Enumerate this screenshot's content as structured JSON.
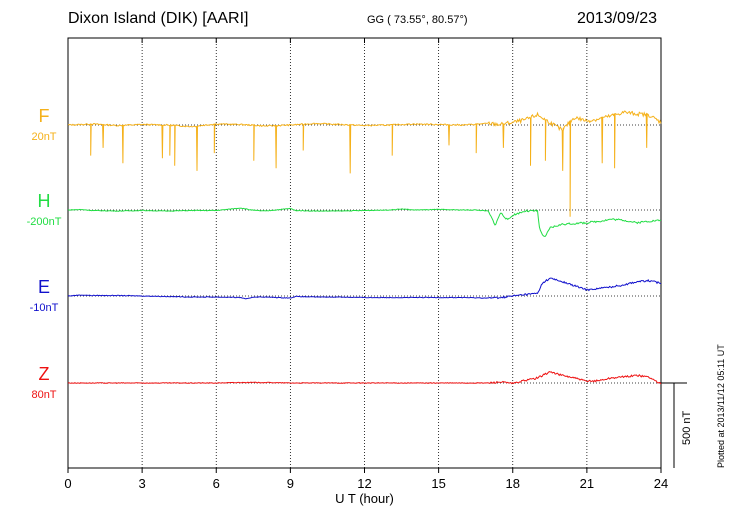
{
  "header": {
    "station": "Dixon Island (DIK)  [AARI]",
    "coords": "GG ( 73.55°,  80.57°)",
    "date": "2013/09/23"
  },
  "footer_note": "Plotted at 2013/11/12 05:11 UT",
  "chart_data": {
    "type": "line",
    "title": "Dixon Island (DIK)  [AARI]",
    "xlabel": "U T (hour)",
    "ylabel": "",
    "xlim": [
      0,
      24
    ],
    "xticks": [
      "0",
      "3",
      "6",
      "9",
      "12",
      "15",
      "18",
      "21",
      "24"
    ],
    "grid": true,
    "scale_bar_label": "500 nT",
    "series": [
      {
        "name": "F",
        "scale_label": "20nT",
        "color": "#f5b11a",
        "baseline_offset_nT": 0,
        "x": [
          0,
          1,
          2,
          3,
          4,
          5,
          6,
          7,
          8,
          9,
          10,
          11,
          12,
          13,
          14,
          15,
          16,
          17,
          17.5,
          18,
          18.5,
          19,
          19.5,
          20,
          20.5,
          21,
          21.5,
          22,
          22.5,
          23,
          23.5,
          24
        ],
        "values": [
          0,
          2,
          -1,
          1,
          0,
          -3,
          2,
          1,
          -2,
          0,
          3,
          1,
          -1,
          0,
          2,
          1,
          0,
          3,
          1,
          5,
          10,
          20,
          5,
          -10,
          15,
          8,
          12,
          18,
          25,
          22,
          20,
          5
        ],
        "dips": [
          [
            0.9,
            -60
          ],
          [
            1.4,
            -45
          ],
          [
            2.2,
            -75
          ],
          [
            3.8,
            -65
          ],
          [
            4.1,
            -60
          ],
          [
            4.3,
            -80
          ],
          [
            5.2,
            -90
          ],
          [
            5.9,
            -55
          ],
          [
            7.5,
            -70
          ],
          [
            8.4,
            -85
          ],
          [
            9.5,
            -50
          ],
          [
            11.4,
            -95
          ],
          [
            13.1,
            -60
          ],
          [
            15.4,
            -40
          ],
          [
            16.5,
            -55
          ],
          [
            17.6,
            -45
          ],
          [
            18.7,
            -80
          ],
          [
            19.3,
            -70
          ],
          [
            20.0,
            -90
          ],
          [
            20.3,
            -180
          ],
          [
            21.6,
            -75
          ],
          [
            22.1,
            -85
          ],
          [
            23.4,
            -45
          ]
        ]
      },
      {
        "name": "H",
        "scale_label": "-200nT",
        "color": "#22dd44",
        "x": [
          0,
          0.5,
          1,
          2,
          3,
          4,
          5,
          6,
          7,
          7.3,
          7.6,
          8,
          9,
          9.2,
          10,
          11,
          12,
          13,
          13.5,
          14,
          15,
          16,
          16.5,
          17,
          17.3,
          17.5,
          17.8,
          18,
          18.5,
          19,
          19.1,
          19.3,
          19.5,
          20,
          21,
          21.5,
          22,
          22.5,
          23,
          23.5,
          24
        ],
        "values": [
          0,
          1,
          -1,
          -2,
          -1,
          -2,
          -1,
          -1,
          4,
          1,
          -1,
          -2,
          3,
          -1,
          -2,
          -2,
          -1,
          0,
          2,
          0,
          1,
          0,
          0,
          -2,
          -30,
          -5,
          -20,
          -10,
          -2,
          -2,
          -40,
          -55,
          -35,
          -28,
          -25,
          -22,
          -18,
          -20,
          -25,
          -22,
          -20
        ]
      },
      {
        "name": "E",
        "scale_label": "-10nT",
        "color": "#1010cc",
        "x": [
          0,
          0.5,
          1,
          2,
          3,
          4,
          5,
          6,
          7,
          7.2,
          7.5,
          8,
          9,
          9.2,
          10,
          11,
          12,
          13,
          14,
          15,
          16,
          17,
          17.5,
          18,
          18.5,
          19,
          19.2,
          19.5,
          20,
          20.5,
          21,
          21.5,
          22,
          22.5,
          23,
          23.5,
          24
        ],
        "values": [
          0,
          2,
          1,
          1,
          0,
          -1,
          -2,
          -2,
          -3,
          -6,
          -2,
          -2,
          -4,
          -1,
          -2,
          -2,
          -3,
          -3,
          -3,
          -3,
          -3,
          -4,
          -3,
          0,
          3,
          5,
          25,
          35,
          28,
          20,
          12,
          15,
          18,
          22,
          28,
          30,
          25
        ]
      },
      {
        "name": "Z",
        "scale_label": "80nT",
        "color": "#ee1111",
        "x": [
          0,
          1,
          2,
          3,
          4,
          5,
          6,
          7,
          8,
          9,
          10,
          11,
          12,
          13,
          14,
          15,
          16,
          17,
          17.5,
          18,
          18.5,
          19,
          19.5,
          20,
          20.5,
          21,
          21.5,
          22,
          22.5,
          23,
          23.5,
          24
        ],
        "values": [
          0,
          0,
          0,
          0,
          0,
          0,
          0,
          1,
          1,
          0,
          0,
          0,
          0,
          0,
          0,
          0,
          0,
          0,
          2,
          -1,
          5,
          10,
          22,
          15,
          10,
          3,
          5,
          10,
          12,
          15,
          12,
          -2
        ]
      }
    ]
  }
}
